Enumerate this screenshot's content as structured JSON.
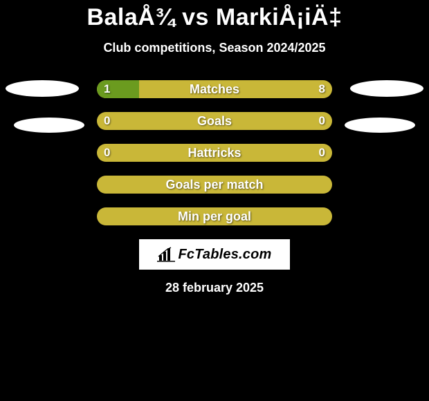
{
  "header": {
    "title": "BalaÅ¾ vs MarkiÅ¡iÄ‡",
    "subtitle": "Club competitions, Season 2024/2025"
  },
  "colors": {
    "bg": "#000000",
    "bar_left": "#6b9b1f",
    "bar_right": "#c9b738",
    "bar_right_alt": "#c9b738",
    "placeholder": "#ffffff",
    "text": "#ffffff"
  },
  "bars": [
    {
      "label": "Matches",
      "left": "1",
      "right": "8",
      "left_pct": 18,
      "right_pct": 82
    },
    {
      "label": "Goals",
      "left": "0",
      "right": "0",
      "left_pct": 0,
      "right_pct": 100
    },
    {
      "label": "Hattricks",
      "left": "0",
      "right": "0",
      "left_pct": 0,
      "right_pct": 100
    },
    {
      "label": "Goals per match",
      "left": "",
      "right": "",
      "left_pct": 0,
      "right_pct": 100
    },
    {
      "label": "Min per goal",
      "left": "",
      "right": "",
      "left_pct": 0,
      "right_pct": 100
    }
  ],
  "logo": {
    "text": "FcTables.com"
  },
  "date": "28 february 2025"
}
